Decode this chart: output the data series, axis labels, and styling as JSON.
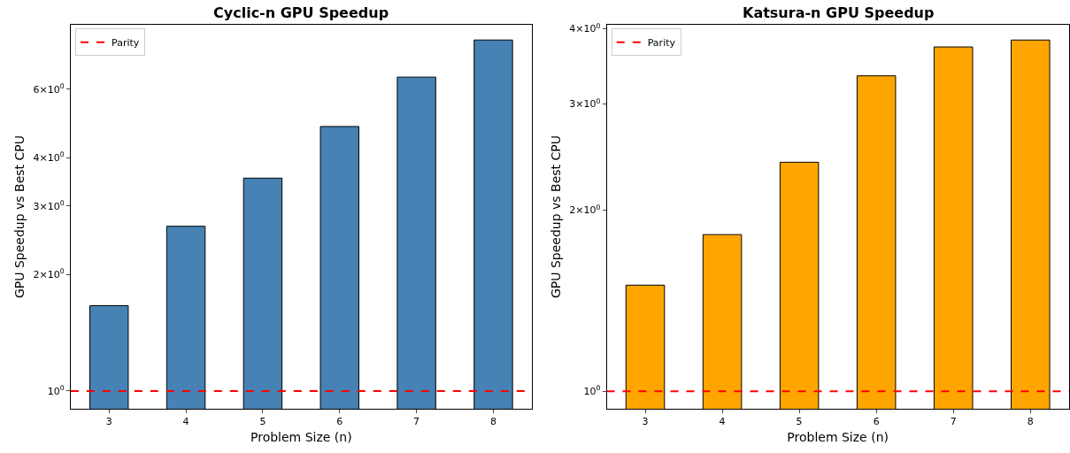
{
  "chart_data": [
    {
      "type": "bar",
      "title": "Cyclic-n GPU Speedup",
      "xlabel": "Problem Size (n)",
      "ylabel": "GPU Speedup vs Best CPU",
      "categories": [
        "3",
        "4",
        "5",
        "6",
        "7",
        "8"
      ],
      "values": [
        1.66,
        2.66,
        3.54,
        4.81,
        6.45,
        8.04
      ],
      "color": "#4682b4",
      "log": "y",
      "ylim": [
        0.9,
        8.8
      ],
      "yticks": [
        {
          "value": 1,
          "label": "10$^{0}$"
        },
        {
          "value": 2,
          "label": "2×10$^{0}$"
        },
        {
          "value": 3,
          "label": "3×10$^{0}$"
        },
        {
          "value": 4,
          "label": "4×10$^{0}$"
        },
        {
          "value": 6,
          "label": "6×10$^{0}$"
        }
      ],
      "ref_lines": [
        {
          "axis": "y",
          "value": 1,
          "label": "Parity",
          "color": "#ff0000",
          "line_style": "dashed"
        }
      ],
      "grid": false,
      "legend": "top left"
    },
    {
      "type": "bar",
      "title": "Katsura-n GPU Speedup",
      "xlabel": "Problem Size (n)",
      "ylabel": "GPU Speedup vs Best CPU",
      "categories": [
        "3",
        "4",
        "5",
        "6",
        "7",
        "8"
      ],
      "values": [
        1.5,
        1.82,
        2.4,
        3.34,
        3.73,
        3.83
      ],
      "color": "#ffa500",
      "log": "y",
      "ylim": [
        0.935,
        4.06
      ],
      "yticks": [
        {
          "value": 1,
          "label": "10$^{0}$"
        },
        {
          "value": 2,
          "label": "2×10$^{0}$"
        },
        {
          "value": 3,
          "label": "3×10$^{0}$"
        },
        {
          "value": 4,
          "label": "4×10$^{0}$"
        }
      ],
      "ref_lines": [
        {
          "axis": "y",
          "value": 1,
          "label": "Parity",
          "color": "#ff0000",
          "line_style": "dashed"
        }
      ],
      "grid": false,
      "legend": "top left"
    }
  ]
}
